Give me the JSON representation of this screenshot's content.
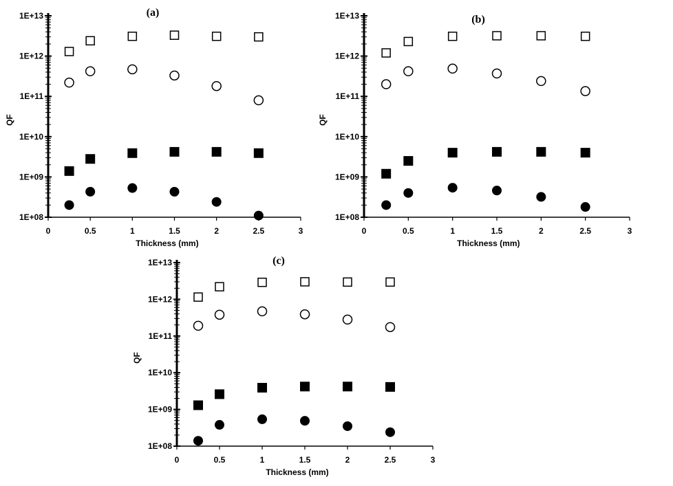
{
  "chart_data": [
    {
      "panel": "(a)",
      "type": "scatter",
      "xlabel": "Thickness (mm)",
      "ylabel": "QF",
      "xlim": [
        0,
        3
      ],
      "ylim": [
        100000000,
        10000000000000
      ],
      "yscale": "log",
      "xticks": [
        "0",
        "0.5",
        "1",
        "1.5",
        "2",
        "2.5",
        "3"
      ],
      "yticks": [
        "1E+08",
        "1E+09",
        "1E+10",
        "1E+11",
        "1E+12",
        "1E+13"
      ],
      "grid": false,
      "series": [
        {
          "marker": "open-square",
          "x": [
            0.25,
            0.5,
            1,
            1.5,
            2,
            2.5
          ],
          "y": [
            1300000000000.0,
            2400000000000.0,
            3100000000000.0,
            3300000000000.0,
            3100000000000.0,
            3000000000000.0
          ]
        },
        {
          "marker": "open-circle",
          "x": [
            0.25,
            0.5,
            1,
            1.5,
            2,
            2.5
          ],
          "y": [
            220000000000.0,
            420000000000.0,
            470000000000.0,
            330000000000.0,
            180000000000.0,
            80000000000.0
          ]
        },
        {
          "marker": "filled-square",
          "x": [
            0.25,
            0.5,
            1,
            1.5,
            2,
            2.5
          ],
          "y": [
            1400000000.0,
            2800000000.0,
            3900000000.0,
            4200000000.0,
            4200000000.0,
            3900000000.0
          ]
        },
        {
          "marker": "filled-circle",
          "x": [
            0.25,
            0.5,
            1,
            1.5,
            2,
            2.5
          ],
          "y": [
            200000000.0,
            430000000.0,
            530000000.0,
            430000000.0,
            240000000.0,
            110000000.0
          ]
        }
      ]
    },
    {
      "panel": "(b)",
      "type": "scatter",
      "xlabel": "Thickness (mm)",
      "ylabel": "QF",
      "xlim": [
        0,
        3
      ],
      "ylim": [
        100000000,
        10000000000000
      ],
      "yscale": "log",
      "xticks": [
        "0",
        "0.5",
        "1",
        "1.5",
        "2",
        "2.5",
        "3"
      ],
      "yticks": [
        "1E+08",
        "1E+09",
        "1E+10",
        "1E+11",
        "1E+12",
        "1E+13"
      ],
      "grid": false,
      "series": [
        {
          "marker": "open-square",
          "x": [
            0.25,
            0.5,
            1,
            1.5,
            2,
            2.5
          ],
          "y": [
            1200000000000.0,
            2300000000000.0,
            3100000000000.0,
            3200000000000.0,
            3200000000000.0,
            3100000000000.0
          ]
        },
        {
          "marker": "open-circle",
          "x": [
            0.25,
            0.5,
            1,
            1.5,
            2,
            2.5
          ],
          "y": [
            200000000000.0,
            420000000000.0,
            490000000000.0,
            370000000000.0,
            240000000000.0,
            135000000000.0
          ]
        },
        {
          "marker": "filled-square",
          "x": [
            0.25,
            0.5,
            1,
            1.5,
            2,
            2.5
          ],
          "y": [
            1200000000.0,
            2500000000.0,
            4000000000.0,
            4200000000.0,
            4200000000.0,
            4000000000.0
          ]
        },
        {
          "marker": "filled-circle",
          "x": [
            0.25,
            0.5,
            1,
            1.5,
            2,
            2.5
          ],
          "y": [
            200000000.0,
            400000000.0,
            540000000.0,
            460000000.0,
            320000000.0,
            180000000.0
          ]
        }
      ]
    },
    {
      "panel": "(c)",
      "type": "scatter",
      "xlabel": "Thickness (mm)",
      "ylabel": "QF",
      "xlim": [
        0,
        3
      ],
      "ylim": [
        100000000,
        10000000000000
      ],
      "yscale": "log",
      "xticks": [
        "0",
        "0.5",
        "1",
        "1.5",
        "2",
        "2.5",
        "3"
      ],
      "yticks": [
        "1E+08",
        "1E+09",
        "1E+10",
        "1E+11",
        "1E+12",
        "1E+13"
      ],
      "grid": false,
      "series": [
        {
          "marker": "open-square",
          "x": [
            0.25,
            0.5,
            1,
            1.5,
            2,
            2.5
          ],
          "y": [
            1150000000000.0,
            2200000000000.0,
            2900000000000.0,
            3000000000000.0,
            2950000000000.0,
            2950000000000.0
          ]
        },
        {
          "marker": "open-circle",
          "x": [
            0.25,
            0.5,
            1,
            1.5,
            2,
            2.5
          ],
          "y": [
            190000000000.0,
            380000000000.0,
            470000000000.0,
            390000000000.0,
            280000000000.0,
            175000000000.0
          ]
        },
        {
          "marker": "filled-square",
          "x": [
            0.25,
            0.5,
            1,
            1.5,
            2,
            2.5
          ],
          "y": [
            1300000000.0,
            2600000000.0,
            3900000000.0,
            4200000000.0,
            4200000000.0,
            4100000000.0
          ]
        },
        {
          "marker": "filled-circle",
          "x": [
            0.25,
            0.5,
            1,
            1.5,
            2,
            2.5
          ],
          "y": [
            140000000.0,
            380000000.0,
            540000000.0,
            490000000.0,
            350000000.0,
            240000000.0
          ]
        }
      ]
    }
  ]
}
